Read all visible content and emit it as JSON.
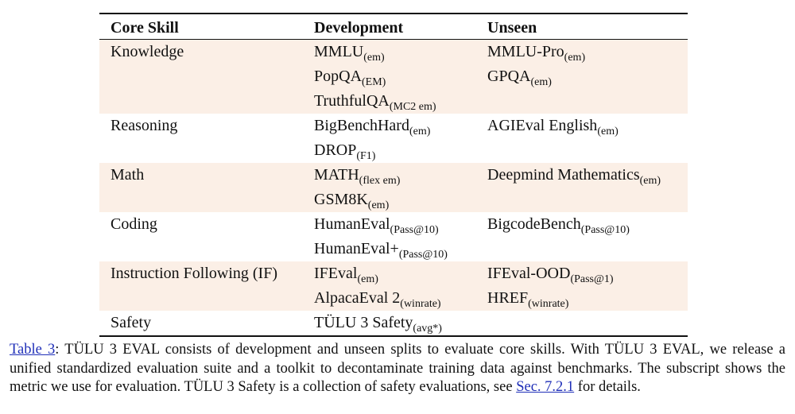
{
  "table": {
    "headers": [
      "Core Skill",
      "Development",
      "Unseen"
    ],
    "rows": [
      {
        "skill": "Knowledge",
        "development": [
          {
            "name": "MMLU",
            "metric": "(em)"
          },
          {
            "name": "PopQA",
            "metric": "(EM)"
          },
          {
            "name": "TruthfulQA",
            "metric": "(MC2 em)"
          }
        ],
        "unseen": [
          {
            "name": "MMLU-Pro",
            "metric": "(em)"
          },
          {
            "name": "GPQA",
            "metric": "(em)"
          }
        ],
        "shaded": true
      },
      {
        "skill": "Reasoning",
        "development": [
          {
            "name": "BigBenchHard",
            "metric": "(em)"
          },
          {
            "name": "DROP",
            "metric": "(F1)"
          }
        ],
        "unseen": [
          {
            "name": "AGIEval English",
            "metric": "(em)"
          }
        ],
        "shaded": false
      },
      {
        "skill": "Math",
        "development": [
          {
            "name": "MATH",
            "metric": "(flex em)"
          },
          {
            "name": "GSM8K",
            "metric": "(em)"
          }
        ],
        "unseen": [
          {
            "name": "Deepmind Mathematics",
            "metric": "(em)"
          }
        ],
        "shaded": true
      },
      {
        "skill": "Coding",
        "development": [
          {
            "name": "HumanEval",
            "metric": "(Pass@10)"
          },
          {
            "name": "HumanEval+",
            "metric": "(Pass@10)"
          }
        ],
        "unseen": [
          {
            "name": "BigcodeBench",
            "metric": "(Pass@10)"
          }
        ],
        "shaded": false
      },
      {
        "skill": "Instruction Following (IF)",
        "development": [
          {
            "name": "IFEval",
            "metric": "(em)"
          },
          {
            "name": "AlpacaEval 2",
            "metric": "(winrate)"
          }
        ],
        "unseen": [
          {
            "name": "IFEval-OOD",
            "metric": "(Pass@1)"
          },
          {
            "name": "HREF",
            "metric": "(winrate)"
          }
        ],
        "shaded": true
      },
      {
        "skill": "Safety",
        "development": [
          {
            "name": "TÜLU 3 Safety",
            "metric": "(avg*)"
          }
        ],
        "unseen": [],
        "shaded": false
      }
    ]
  },
  "caption": {
    "label": "Table 3",
    "segments": [
      ": TÜLU 3 EVAL consists of development and unseen splits to evaluate core skills. With TÜLU 3 EVAL, we release a unified standardized evaluation suite and a toolkit to decontaminate training data against benchmarks. The subscript shows the metric we use for evaluation. TÜLU 3 Safety is a collection of safety evaluations, see ",
      " for details."
    ],
    "section_link": "Sec. 7.2.1"
  }
}
